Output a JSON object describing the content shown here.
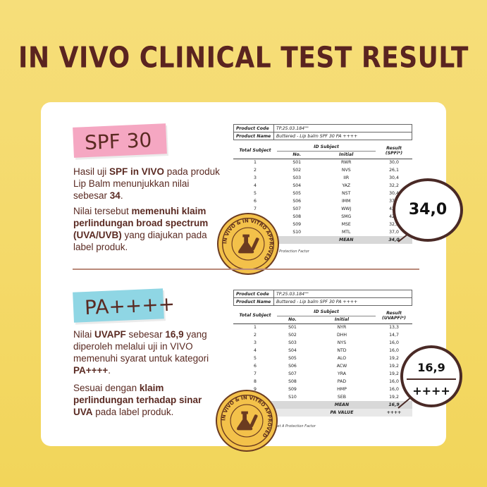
{
  "title": "IN VIVO CLINICAL TEST RESULT",
  "spf": {
    "tag": "SPF 30",
    "p1": [
      {
        "t": "Hasil uji ",
        "b": false
      },
      {
        "t": "SPF in VIVO",
        "b": true
      },
      {
        "t": " pada produk Lip Balm menunjukkan nilai sebesar ",
        "b": false
      },
      {
        "t": "34",
        "b": true
      },
      {
        "t": ".",
        "b": false
      }
    ],
    "p2": [
      {
        "t": "Nilai tersebut ",
        "b": false
      },
      {
        "t": "memenuhi klaim perlindungan broad spectrum (UVA/UVB)",
        "b": true
      },
      {
        "t": " yang diajukan pada label produk.",
        "b": false
      }
    ],
    "table": {
      "product_code_label": "Product Code",
      "product_code": "TP.25.03.184\"\"",
      "product_name_label": "Product Name",
      "product_name": "Buttered - Lip balm SPF 30 PA ++++",
      "col_total": "Total Subject",
      "col_id": "ID Subject",
      "col_no": "No.",
      "col_initial": "Initial",
      "col_result": "Result (SPFi*)",
      "rows": [
        [
          "1",
          "S01",
          "RWR",
          "30,0"
        ],
        [
          "2",
          "S02",
          "NVS",
          "26,1"
        ],
        [
          "3",
          "S03",
          "IIR",
          "30,4"
        ],
        [
          "4",
          "S04",
          "YAZ",
          "32,2"
        ],
        [
          "5",
          "S05",
          "NST",
          "30,4"
        ],
        [
          "6",
          "S06",
          "IMM",
          "37,0"
        ],
        [
          "7",
          "S07",
          "WWJ",
          "42,6"
        ],
        [
          "8",
          "S08",
          "SMG",
          "42,5"
        ],
        [
          "9",
          "S09",
          "MSE",
          "32,2"
        ],
        [
          "10",
          "S10",
          "MTL",
          "37,0"
        ]
      ],
      "mean_label": "MEAN",
      "mean": "34,0",
      "footnote": "Protection Factor"
    },
    "bubble": "34,0"
  },
  "pa": {
    "tag": "PA++++",
    "p3": [
      {
        "t": "Nilai ",
        "b": false
      },
      {
        "t": "UVAPF",
        "b": true
      },
      {
        "t": " sebesar ",
        "b": false
      },
      {
        "t": "16,9",
        "b": true
      },
      {
        "t": " yang diperoleh melalui uji in VIVO memenuhi syarat untuk kategori ",
        "b": false
      },
      {
        "t": "PA++++",
        "b": true
      },
      {
        "t": ".",
        "b": false
      }
    ],
    "p4": [
      {
        "t": "Sesuai dengan ",
        "b": false
      },
      {
        "t": "klaim perlindungan terhadap sinar UVA",
        "b": true
      },
      {
        "t": " pada label produk.",
        "b": false
      }
    ],
    "table": {
      "product_code_label": "Product Code",
      "product_code": "TP.25.03.184\"\"",
      "product_name_label": "Product Name",
      "product_name": "Buttered - Lip balm SPF 30 PA ++++",
      "col_total": "Total Subject",
      "col_id": "ID Subject",
      "col_no": "No.",
      "col_initial": "Initial",
      "col_result": "Result (UVAPFi*)",
      "rows": [
        [
          "1",
          "S01",
          "NYR",
          "13,3"
        ],
        [
          "2",
          "S02",
          "DHH",
          "14,7"
        ],
        [
          "3",
          "S03",
          "NYS",
          "16,0"
        ],
        [
          "4",
          "S04",
          "NTD",
          "16,0"
        ],
        [
          "5",
          "S05",
          "ALO",
          "19,2"
        ],
        [
          "6",
          "S06",
          "ACW",
          "19,2"
        ],
        [
          "7",
          "S07",
          "YRA",
          "19,2"
        ],
        [
          "8",
          "S08",
          "PAD",
          "16,0"
        ],
        [
          "9",
          "S09",
          "HMP",
          "16,0"
        ],
        [
          "10",
          "S10",
          "SEB",
          "19,2"
        ]
      ],
      "mean_label": "MEAN",
      "mean": "16,9",
      "pa_label": "PA VALUE",
      "pa_value": "++++",
      "footnote": "iet A Protection Factor"
    },
    "bubble_1": "16,9",
    "bubble_2": "++++"
  },
  "seal_text": "IN VIVO & IN VITRO APPROVED"
}
